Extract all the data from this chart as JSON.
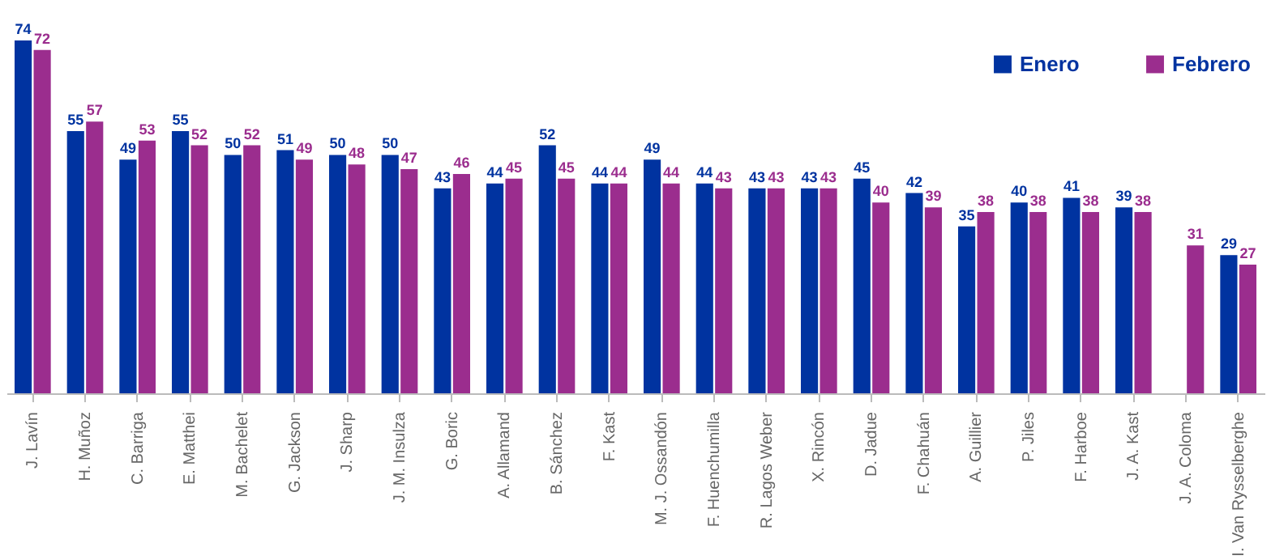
{
  "chart_data": {
    "type": "bar",
    "categories": [
      "J. Lavín",
      "H. Muñoz",
      "C. Barriga",
      "E. Matthei",
      "M. Bachelet",
      "G. Jackson",
      "J. Sharp",
      "J. M. Insulza",
      "G. Boric",
      "A. Allamand",
      "B. Sánchez",
      "F. Kast",
      "M. J. Ossandón",
      "F. Huenchumilla",
      "R. Lagos Weber",
      "X. Rincón",
      "D. Jadue",
      "F. Chahuán",
      "A. Guillier",
      "P. Jiles",
      "F. Harboe",
      "J. A. Kast",
      "J. A. Coloma",
      "I. Van Rysselberghe"
    ],
    "series": [
      {
        "name": "Enero",
        "color": "#0033a0",
        "values": [
          74,
          55,
          49,
          55,
          50,
          51,
          50,
          50,
          43,
          44,
          52,
          44,
          49,
          44,
          43,
          43,
          45,
          42,
          35,
          40,
          41,
          39,
          null,
          29
        ]
      },
      {
        "name": "Febrero",
        "color": "#9b2d8e",
        "values": [
          72,
          57,
          53,
          52,
          52,
          49,
          48,
          47,
          46,
          45,
          45,
          44,
          44,
          43,
          43,
          43,
          40,
          39,
          38,
          38,
          38,
          38,
          31,
          27
        ]
      }
    ],
    "data_labels": true,
    "grid": false,
    "legend": "top right"
  }
}
